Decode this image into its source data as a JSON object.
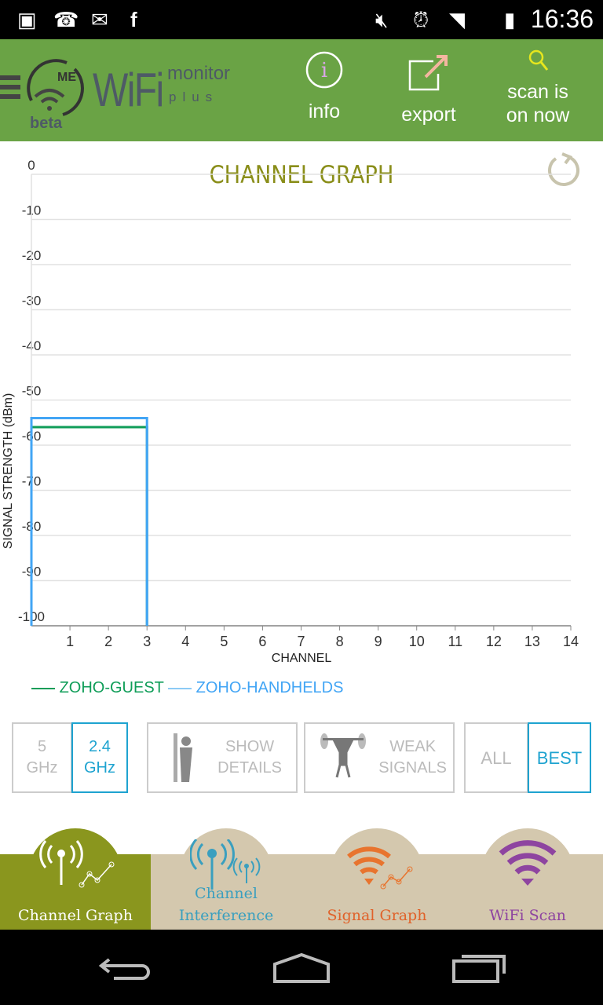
{
  "status_bar": {
    "time": "16:36"
  },
  "app_bar": {
    "logo_main": "WiFi",
    "logo_sub1": "monitor",
    "logo_sub2": "plus",
    "logo_badge": "ME",
    "beta": "beta",
    "info_label": "info",
    "export_label": "export",
    "scan_label_1": "scan is",
    "scan_label_2": "on now"
  },
  "chart_data": {
    "type": "step-area",
    "title": "CHANNEL GRAPH",
    "xlabel": "CHANNEL",
    "ylabel": "SIGNAL STRENGTH (dBm)",
    "xlim": [
      0,
      14
    ],
    "ylim": [
      -100,
      0
    ],
    "xticks": [
      "1",
      "2",
      "3",
      "4",
      "5",
      "6",
      "7",
      "8",
      "9",
      "10",
      "11",
      "12",
      "13",
      "14"
    ],
    "yticks": [
      "0",
      "-10",
      "-20",
      "-30",
      "-40",
      "-50",
      "-60",
      "-70",
      "-80",
      "-90",
      "-100"
    ],
    "grid": true,
    "legend_position": "bottom-left",
    "series": [
      {
        "name": "ZOHO-GUEST",
        "color": "#0f9d58",
        "channel_start": 0,
        "channel_end": 3,
        "signal": -56
      },
      {
        "name": "ZOHO-HANDHELDS",
        "color": "#42a5f5",
        "channel_start": 0,
        "channel_end": 3,
        "signal": -54
      }
    ]
  },
  "filters": {
    "band_5": [
      "5",
      "GHz"
    ],
    "band_24": [
      "2.4",
      "GHz"
    ],
    "show_details": [
      "SHOW",
      "DETAILS"
    ],
    "weak_signals": [
      "WEAK",
      "SIGNALS"
    ],
    "all": "ALL",
    "best": "BEST",
    "accent": "#1ea3d0"
  },
  "bottom_nav": [
    {
      "label": "Channel Graph",
      "color": "#ffffff",
      "active": true
    },
    {
      "l1": "Channel",
      "l2": "Interference",
      "color": "#3a9fbf"
    },
    {
      "label": "Signal Graph",
      "color": "#e0622a"
    },
    {
      "label": "WiFi Scan",
      "color": "#8e44a0"
    }
  ]
}
